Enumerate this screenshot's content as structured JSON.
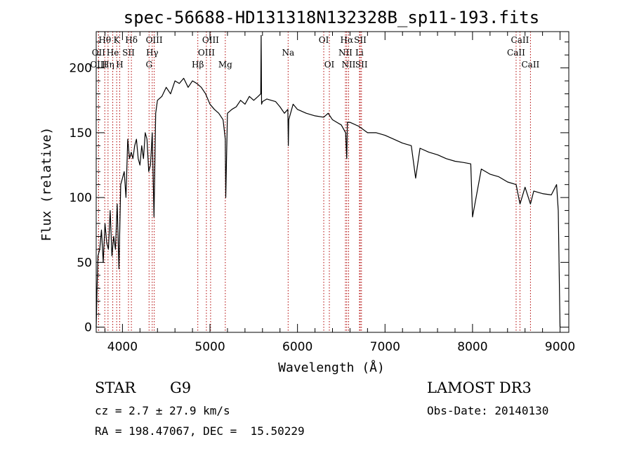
{
  "chart_data": {
    "type": "line",
    "title": "spec-56688-HD131318N132328B_sp11-193.fits",
    "xlabel": "Wavelength (Å)",
    "ylabel": "Flux (relative)",
    "xlim": [
      3700,
      9100
    ],
    "ylim": [
      -4,
      228
    ],
    "x_ticks": [
      4000,
      5000,
      6000,
      7000,
      8000,
      9000
    ],
    "y_ticks": [
      0,
      50,
      100,
      150,
      200
    ],
    "series": [
      {
        "name": "spectrum",
        "x": [
          3700,
          3710,
          3720,
          3740,
          3760,
          3780,
          3800,
          3820,
          3840,
          3860,
          3880,
          3900,
          3920,
          3940,
          3960,
          3980,
          4000,
          4020,
          4040,
          4060,
          4080,
          4100,
          4120,
          4140,
          4160,
          4180,
          4200,
          4220,
          4240,
          4260,
          4280,
          4300,
          4320,
          4340,
          4360,
          4380,
          4400,
          4450,
          4500,
          4550,
          4600,
          4650,
          4700,
          4750,
          4800,
          4850,
          4900,
          4950,
          5000,
          5050,
          5100,
          5150,
          5175,
          5180,
          5200,
          5250,
          5300,
          5350,
          5400,
          5450,
          5500,
          5550,
          5580,
          5585,
          5590,
          5600,
          5650,
          5700,
          5750,
          5800,
          5850,
          5890,
          5895,
          5900,
          5950,
          6000,
          6100,
          6200,
          6300,
          6350,
          6400,
          6450,
          6500,
          6550,
          6563,
          6570,
          6600,
          6700,
          6800,
          6900,
          7000,
          7100,
          7200,
          7300,
          7350,
          7400,
          7500,
          7600,
          7700,
          7800,
          7900,
          7980,
          8000,
          8100,
          8200,
          8300,
          8400,
          8498,
          8542,
          8600,
          8662,
          8700,
          8800,
          8900,
          8960,
          8980,
          9000
        ],
        "y": [
          0,
          30,
          55,
          60,
          75,
          50,
          80,
          65,
          60,
          90,
          55,
          70,
          60,
          95,
          45,
          110,
          115,
          120,
          100,
          145,
          130,
          135,
          130,
          140,
          145,
          130,
          125,
          140,
          130,
          150,
          145,
          120,
          125,
          150,
          85,
          165,
          175,
          178,
          185,
          180,
          190,
          188,
          192,
          185,
          190,
          188,
          185,
          180,
          172,
          168,
          165,
          160,
          145,
          100,
          165,
          168,
          170,
          175,
          172,
          178,
          175,
          178,
          180,
          225,
          172,
          174,
          176,
          175,
          174,
          170,
          165,
          168,
          140,
          160,
          172,
          168,
          165,
          163,
          162,
          165,
          160,
          158,
          156,
          150,
          130,
          158,
          158,
          155,
          150,
          150,
          148,
          145,
          142,
          140,
          115,
          138,
          135,
          133,
          130,
          128,
          127,
          126,
          85,
          122,
          118,
          116,
          112,
          110,
          95,
          108,
          95,
          105,
          103,
          102,
          110,
          90,
          0
        ]
      }
    ],
    "spectral_lines": [
      {
        "label": "Hθ",
        "x": 3798,
        "row": 0
      },
      {
        "label": "OII",
        "x": 3727,
        "row": 1
      },
      {
        "label": "OIII",
        "x": 3727,
        "row": 2
      },
      {
        "label": "K",
        "x": 3934,
        "row": 0
      },
      {
        "label": "He",
        "x": 3889,
        "row": 1
      },
      {
        "label": "Hη",
        "x": 3835,
        "row": 2
      },
      {
        "label": "Hδ",
        "x": 4102,
        "row": 0
      },
      {
        "label": "SII",
        "x": 4069,
        "row": 1
      },
      {
        "label": "H",
        "x": 3969,
        "row": 2
      },
      {
        "label": "OIII",
        "x": 4363,
        "row": 0
      },
      {
        "label": "Hγ",
        "x": 4340,
        "row": 1
      },
      {
        "label": "G",
        "x": 4304,
        "row": 2
      },
      {
        "label": "OIII",
        "x": 5007,
        "row": 0
      },
      {
        "label": "OIII",
        "x": 4959,
        "row": 1
      },
      {
        "label": "Hβ",
        "x": 4861,
        "row": 2
      },
      {
        "label": "Mg",
        "x": 5175,
        "row": 2
      },
      {
        "label": "Na",
        "x": 5893,
        "row": 1
      },
      {
        "label": "OI",
        "x": 6300,
        "row": 0
      },
      {
        "label": "OI",
        "x": 6364,
        "row": 2
      },
      {
        "label": "Hα",
        "x": 6563,
        "row": 0
      },
      {
        "label": "NII",
        "x": 6548,
        "row": 1
      },
      {
        "label": "NII",
        "x": 6584,
        "row": 2
      },
      {
        "label": "SII",
        "x": 6717,
        "row": 0
      },
      {
        "label": "Li",
        "x": 6708,
        "row": 1
      },
      {
        "label": "SII",
        "x": 6731,
        "row": 2
      },
      {
        "label": "CaII",
        "x": 8542,
        "row": 0
      },
      {
        "label": "CaII",
        "x": 8498,
        "row": 1
      },
      {
        "label": "CaII",
        "x": 8662,
        "row": 2
      }
    ]
  },
  "info": {
    "object_class": "STAR",
    "subclass": "G9",
    "redshift": "cz = 2.7 ± 27.9 km/s",
    "coords": "RA = 198.47067, DEC =  15.50229",
    "survey": "LAMOST DR3",
    "obs_date": "Obs-Date: 20140130"
  },
  "colors": {
    "spectrum": "#000000",
    "line_marker": "#b00000"
  }
}
